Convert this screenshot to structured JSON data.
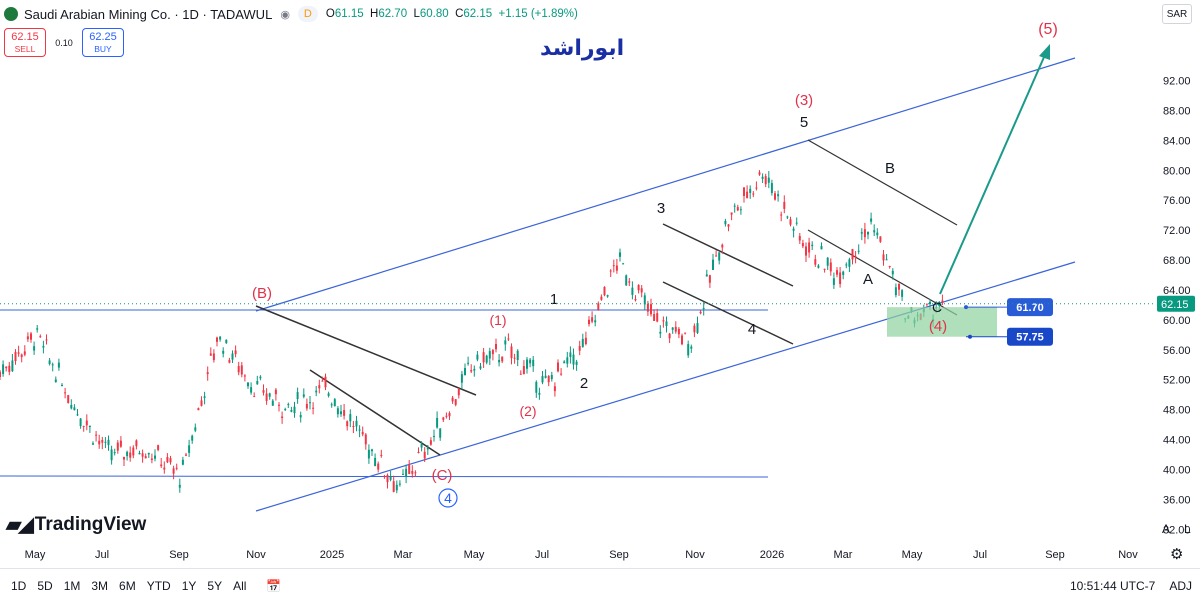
{
  "header": {
    "title": "Saudi Arabian Mining Co. · 1D · TADAWUL",
    "badge": "D",
    "ohlc": {
      "o_label": "O",
      "o": "61.15",
      "h_label": "H",
      "h": "62.70",
      "l_label": "L",
      "l": "60.80",
      "c_label": "C",
      "c": "62.15",
      "change": "+1.15 (+1.89%)"
    }
  },
  "trade": {
    "sell_price": "62.15",
    "sell_label": "SELL",
    "spread": "0.10",
    "buy_price": "62.25",
    "buy_label": "BUY"
  },
  "currency": "SAR",
  "author": "ابوراشد",
  "logo_text": "TradingView",
  "axis_buttons": {
    "auto": "A",
    "log": "L"
  },
  "chart_data": {
    "type": "candlestick",
    "last_price": "62.15",
    "ylim": [
      28,
      96
    ],
    "y_ticks": [
      "92.00",
      "88.00",
      "84.00",
      "80.00",
      "76.00",
      "72.00",
      "68.00",
      "64.00",
      "60.00",
      "56.00",
      "52.00",
      "48.00",
      "44.00",
      "40.00",
      "36.00",
      "32.00"
    ],
    "x_ticks": [
      "May",
      "Jul",
      "Sep",
      "Nov",
      "2025",
      "Mar",
      "May",
      "Jul",
      "Sep",
      "Nov",
      "2026",
      "Mar",
      "May",
      "Jul",
      "Sep",
      "Nov"
    ],
    "price_path": [
      [
        "May",
        53
      ],
      [
        "Jun",
        58
      ],
      [
        "Jul",
        49
      ],
      [
        "Aug",
        42
      ],
      [
        "Sep",
        43
      ],
      [
        "Oct",
        39
      ],
      [
        "Nov",
        58
      ],
      [
        "Dec",
        51
      ],
      [
        "2025",
        48
      ],
      [
        "Feb",
        51
      ],
      [
        "Mar",
        44
      ],
      [
        "Apr",
        37.5
      ],
      [
        "May",
        45
      ],
      [
        "Jun",
        54
      ],
      [
        "Jul",
        56
      ],
      [
        "Aug",
        51
      ],
      [
        "Sep",
        56
      ],
      [
        "Oct",
        68
      ],
      [
        "Nov",
        60
      ],
      [
        "Dec",
        57
      ],
      [
        "2026",
        73
      ],
      [
        "Jan",
        80
      ],
      [
        "Feb",
        71
      ],
      [
        "Mar",
        66
      ],
      [
        "Apr",
        73
      ],
      [
        "May",
        60
      ],
      [
        "Jun",
        62.15
      ]
    ],
    "price_boxes": [
      {
        "value": "61.70",
        "color": "#2a5bd7"
      },
      {
        "value": "57.75",
        "color": "#1848c8"
      }
    ],
    "wave_labels": [
      "(B)",
      "(C)",
      "(1)",
      "(2)",
      "(3)",
      "(4)",
      "(5)",
      "1",
      "2",
      "3",
      "4",
      "5",
      "A",
      "B",
      "C",
      "4"
    ],
    "target_zone": {
      "from": 57.75,
      "to": 61.7
    }
  },
  "toolbar": {
    "ranges": [
      "1D",
      "5D",
      "1M",
      "3M",
      "6M",
      "YTD",
      "1Y",
      "5Y",
      "All"
    ],
    "clock": "10:51:44 UTC-7",
    "adj": "ADJ"
  }
}
